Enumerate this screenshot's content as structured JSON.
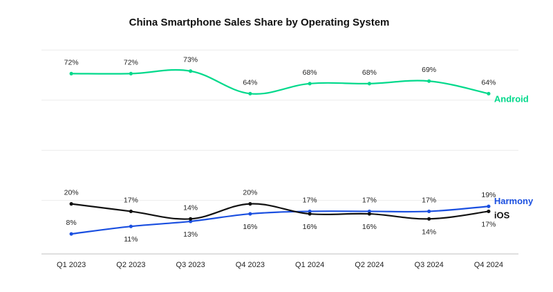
{
  "chart_data": {
    "type": "line",
    "title": "China Smartphone Sales Share by Operating System",
    "xlabel": "",
    "ylabel": "",
    "categories": [
      "Q1 2023",
      "Q2 2023",
      "Q3 2023",
      "Q4 2023",
      "Q1 2024",
      "Q2 2024",
      "Q3 2024",
      "Q4 2024"
    ],
    "ylim": [
      0,
      80
    ],
    "grid": true,
    "legend": "direct-labels-right",
    "series": [
      {
        "name": "Android",
        "color": "#00d98b",
        "values": [
          72,
          72,
          73,
          64,
          68,
          68,
          69,
          64
        ],
        "labels": [
          "72%",
          "72%",
          "73%",
          "64%",
          "68%",
          "68%",
          "69%",
          "64%"
        ],
        "label_pos": [
          "above",
          "above",
          "above",
          "above",
          "above",
          "above",
          "above",
          "above"
        ]
      },
      {
        "name": "Harmony",
        "color": "#1a4fe0",
        "values": [
          8,
          11,
          13,
          16,
          17,
          17,
          17,
          19
        ],
        "labels": [
          "8%",
          "11%",
          "13%",
          "16%",
          "17%",
          "17%",
          "17%",
          "19%"
        ],
        "label_pos": [
          "above",
          "below",
          "below",
          "below",
          "above",
          "above",
          "above",
          "above"
        ]
      },
      {
        "name": "iOS",
        "color": "#111111",
        "values": [
          20,
          17,
          14,
          20,
          16,
          16,
          14,
          17
        ],
        "labels": [
          "20%",
          "17%",
          "14%",
          "20%",
          "16%",
          "16%",
          "14%",
          "17%"
        ],
        "label_pos": [
          "above",
          "above",
          "above",
          "above",
          "below",
          "below",
          "below",
          "below"
        ]
      }
    ]
  }
}
